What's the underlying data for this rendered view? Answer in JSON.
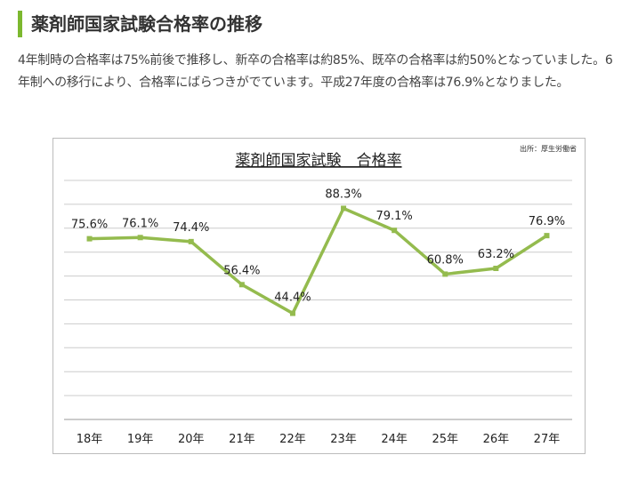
{
  "heading": "薬剤師国家試験合格率の推移",
  "paragraph": "4年制時の合格率は75%前後で推移し、新卒の合格率は約85%、既卒の合格率は約50%となっていました。6年制への移行により、合格率にばらつきがでています。平成27年度の合格率は76.9%となりました。",
  "accent_color": "#7cb82f",
  "chart_data": {
    "type": "line",
    "title": "薬剤師国家試験　合格率",
    "source": "出所：厚生労働省",
    "categories": [
      "18年",
      "19年",
      "20年",
      "21年",
      "22年",
      "23年",
      "24年",
      "25年",
      "26年",
      "27年"
    ],
    "values": [
      75.6,
      76.1,
      74.4,
      56.4,
      44.4,
      88.3,
      79.1,
      60.8,
      63.2,
      76.9
    ],
    "data_labels": [
      "75.6%",
      "76.1%",
      "74.4%",
      "56.4%",
      "44.4%",
      "88.3%",
      "79.1%",
      "60.8%",
      "63.2%",
      "76.9%"
    ],
    "ylim": [
      0,
      100
    ],
    "grid": true,
    "y_tick_step": 10,
    "line_color": "#94bb4e"
  }
}
